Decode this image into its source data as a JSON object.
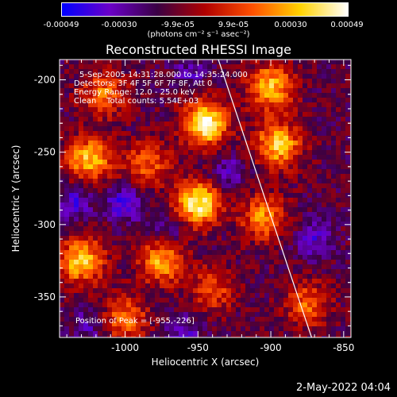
{
  "colorbar": {
    "ticks": [
      "-0.00049",
      "-0.00030",
      "-9.9e-05",
      "9.9e-05",
      "0.00030",
      "0.00049"
    ],
    "units": "(photons cm⁻² s⁻¹ asec⁻²)",
    "colors": [
      "#0000ff",
      "#6b00c8",
      "#3a0044",
      "#b00000",
      "#ff5000",
      "#ffd200",
      "#ffffff"
    ]
  },
  "footer": {
    "date": "2-May-2022 04:04"
  },
  "chart_data": {
    "type": "heatmap",
    "title": "Reconstructed RHESSI Image",
    "xlabel": "Heliocentric X (arcsec)",
    "ylabel": "Heliocentric Y (arcsec)",
    "xlim": [
      -1045,
      -845
    ],
    "ylim": [
      -378,
      -186
    ],
    "xticks": [
      -1000,
      -950,
      -900,
      -850
    ],
    "yticks": [
      -200,
      -250,
      -300,
      -350
    ],
    "xtick_labels": [
      "-1000",
      "-950",
      "-900",
      "-850"
    ],
    "ytick_labels": [
      "-200",
      "-250",
      "-300",
      "-350"
    ],
    "colorbar_range": [
      -0.00049,
      0.00049
    ],
    "annotations": [
      "5-Sep-2005 14:31:28.000 to 14:35:24.000",
      "Detectors: 3F 4F 5F 6F 7F 8F, Att 0",
      "Energy Range: 12.0 - 25.0 keV",
      "Clean    Total counts: 5.54E+03"
    ],
    "peak_label": "Position of Peak = [-955,-226]",
    "limb_line": {
      "x": [
        -936,
        -872
      ],
      "y": [
        -186,
        -378
      ]
    },
    "bright_regions": [
      {
        "x": -945,
        "y": -230,
        "intensity": 1.0
      },
      {
        "x": -950,
        "y": -285,
        "intensity": 0.95
      },
      {
        "x": -895,
        "y": -245,
        "intensity": 0.8
      },
      {
        "x": -1025,
        "y": -255,
        "intensity": 0.75
      },
      {
        "x": -1030,
        "y": -325,
        "intensity": 0.8
      },
      {
        "x": -975,
        "y": -325,
        "intensity": 0.7
      },
      {
        "x": -900,
        "y": -205,
        "intensity": 0.75
      },
      {
        "x": -1015,
        "y": -210,
        "intensity": 0.55
      },
      {
        "x": -985,
        "y": -258,
        "intensity": 0.5
      },
      {
        "x": -905,
        "y": -295,
        "intensity": 0.6
      },
      {
        "x": -1000,
        "y": -365,
        "intensity": 0.55
      },
      {
        "x": -875,
        "y": -355,
        "intensity": 0.5
      },
      {
        "x": -940,
        "y": -345,
        "intensity": 0.45
      }
    ],
    "dark_regions": [
      {
        "x": -1000,
        "y": -285,
        "depth": 0.8
      },
      {
        "x": -930,
        "y": -265,
        "depth": 0.6
      },
      {
        "x": -1035,
        "y": -285,
        "depth": 0.7
      },
      {
        "x": -870,
        "y": -310,
        "depth": 0.7
      },
      {
        "x": -960,
        "y": -375,
        "depth": 0.6
      },
      {
        "x": -955,
        "y": -195,
        "depth": 0.5
      },
      {
        "x": -1025,
        "y": -370,
        "depth": 0.5
      },
      {
        "x": -970,
        "y": -305,
        "depth": 0.5
      }
    ]
  }
}
